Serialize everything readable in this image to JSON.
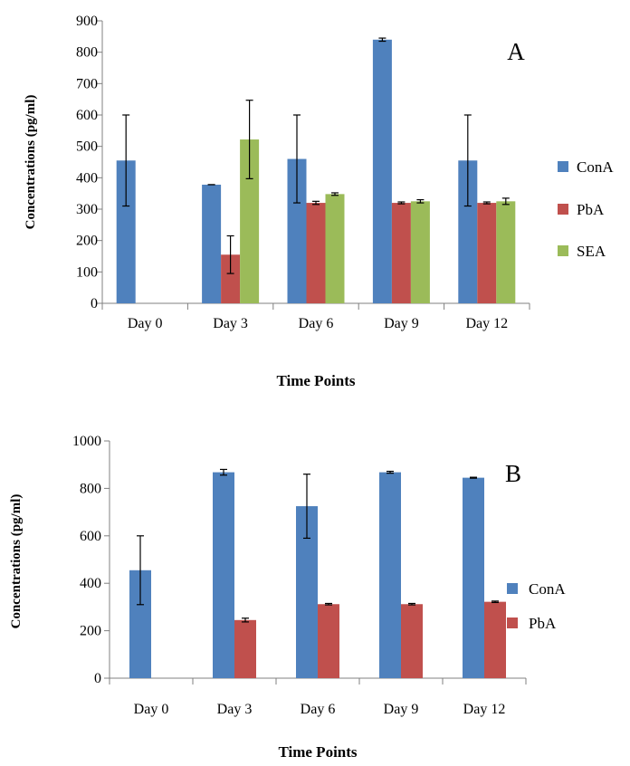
{
  "chart_data": [
    {
      "type": "bar",
      "panel_label": "A",
      "categories": [
        "Day 0",
        "Day 3",
        "Day 6",
        "Day 9",
        "Day 12"
      ],
      "xlabel": "Time Points",
      "ylabel": "Concentrations (pg/ml)",
      "ylim": [
        0,
        900
      ],
      "yticks": [
        0,
        100,
        200,
        300,
        400,
        500,
        600,
        700,
        800,
        900
      ],
      "legend_position": "right",
      "grid": false,
      "series": [
        {
          "name": "ConA",
          "color": "#4f81bd",
          "values": [
            455,
            378,
            460,
            840,
            455
          ],
          "errors": [
            145,
            0,
            140,
            5,
            145
          ]
        },
        {
          "name": "PbA",
          "color": "#c0504d",
          "values": [
            null,
            155,
            320,
            320,
            320
          ],
          "errors": [
            0,
            60,
            5,
            3,
            3
          ]
        },
        {
          "name": "SEA",
          "color": "#9bbb59",
          "values": [
            null,
            522,
            348,
            325,
            325
          ],
          "errors": [
            0,
            125,
            4,
            5,
            10
          ]
        }
      ]
    },
    {
      "type": "bar",
      "panel_label": "B",
      "categories": [
        "Day 0",
        "Day 3",
        "Day 6",
        "Day 9",
        "Day 12"
      ],
      "xlabel": "Time Points",
      "ylabel": "Concentrations (pg/ml)",
      "ylim": [
        0,
        1000
      ],
      "yticks": [
        0,
        200,
        400,
        600,
        800,
        1000
      ],
      "legend_position": "right",
      "grid": false,
      "series": [
        {
          "name": "ConA",
          "color": "#4f81bd",
          "values": [
            455,
            868,
            725,
            868,
            845
          ],
          "errors": [
            145,
            12,
            135,
            4,
            2
          ]
        },
        {
          "name": "PbA",
          "color": "#c0504d",
          "values": [
            null,
            245,
            312,
            312,
            322
          ],
          "errors": [
            0,
            8,
            3,
            3,
            3
          ]
        }
      ]
    }
  ]
}
